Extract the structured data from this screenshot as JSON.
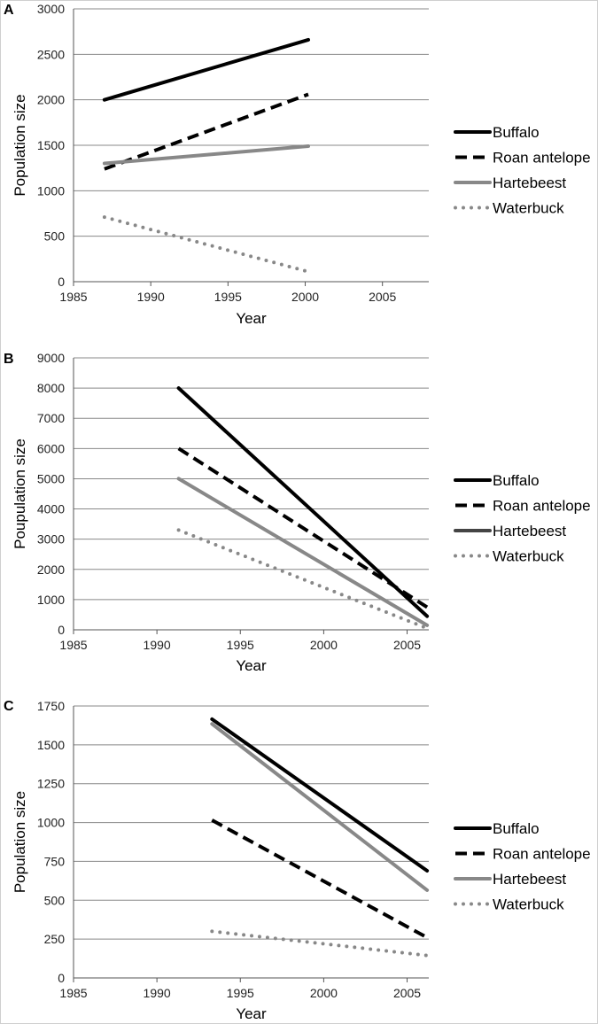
{
  "chart_data": [
    {
      "panel": "A",
      "type": "line",
      "xlabel": "Year",
      "ylabel": "Population size",
      "xlim": [
        1985,
        2008
      ],
      "ylim": [
        0,
        3000
      ],
      "xticks": [
        1985,
        1990,
        1995,
        2000,
        2005
      ],
      "yticks": [
        0,
        500,
        1000,
        1500,
        2000,
        2500,
        3000
      ],
      "grid": "horizontal",
      "legend": "right",
      "series": [
        {
          "name": "Buffalo",
          "color": "#000000",
          "style": "solid",
          "x": [
            1987,
            2000.2
          ],
          "y": [
            2000,
            2660
          ]
        },
        {
          "name": "Roan antelope",
          "color": "#000000",
          "style": "dashed",
          "x": [
            1987,
            2000.2
          ],
          "y": [
            1240,
            2060
          ]
        },
        {
          "name": "Hartebeest",
          "color": "#888888",
          "style": "solid",
          "x": [
            1987,
            2000.2
          ],
          "y": [
            1300,
            1490
          ]
        },
        {
          "name": "Waterbuck",
          "color": "#888888",
          "style": "dotted",
          "x": [
            1987,
            2000.2
          ],
          "y": [
            710,
            110
          ]
        }
      ]
    },
    {
      "panel": "B",
      "type": "line",
      "xlabel": "Year",
      "ylabel": "Poupulation size",
      "xlim": [
        1985,
        2006.3
      ],
      "ylim": [
        0,
        9000
      ],
      "xticks": [
        1985,
        1990,
        1995,
        2000,
        2005
      ],
      "yticks": [
        0,
        1000,
        2000,
        3000,
        4000,
        5000,
        6000,
        7000,
        8000,
        9000
      ],
      "grid": "horizontal",
      "legend": "right",
      "series": [
        {
          "name": "Buffalo",
          "color": "#000000",
          "style": "solid",
          "x": [
            1991.3,
            2006.2
          ],
          "y": [
            8000,
            450
          ]
        },
        {
          "name": "Roan antelope",
          "color": "#000000",
          "style": "dashed",
          "x": [
            1991.3,
            2006.2
          ],
          "y": [
            6000,
            750
          ]
        },
        {
          "name": "Hartebeest",
          "color": "#888888",
          "style": "solid",
          "legend_color": "#444444",
          "x": [
            1991.3,
            2006.2
          ],
          "y": [
            5000,
            150
          ]
        },
        {
          "name": "Waterbuck",
          "color": "#888888",
          "style": "dotted",
          "x": [
            1991.3,
            2006.2
          ],
          "y": [
            3300,
            50
          ]
        }
      ]
    },
    {
      "panel": "C",
      "type": "line",
      "xlabel": "Year",
      "ylabel": "Population size",
      "xlim": [
        1985,
        2006.3
      ],
      "ylim": [
        0,
        1750
      ],
      "xticks": [
        1985,
        1990,
        1995,
        2000,
        2005
      ],
      "yticks": [
        0,
        250,
        500,
        750,
        1000,
        1250,
        1500,
        1750
      ],
      "grid": "horizontal",
      "legend": "right",
      "series": [
        {
          "name": "Buffalo",
          "color": "#000000",
          "style": "solid",
          "x": [
            1993.3,
            2006.2
          ],
          "y": [
            1665,
            690
          ]
        },
        {
          "name": "Roan antelope",
          "color": "#000000",
          "style": "dashed",
          "x": [
            1993.3,
            2006.2
          ],
          "y": [
            1015,
            260
          ]
        },
        {
          "name": "Hartebeest",
          "color": "#888888",
          "style": "solid",
          "x": [
            1993.3,
            2006.2
          ],
          "y": [
            1635,
            565
          ]
        },
        {
          "name": "Waterbuck",
          "color": "#888888",
          "style": "dotted",
          "x": [
            1993.3,
            2006.2
          ],
          "y": [
            300,
            145
          ]
        }
      ]
    }
  ]
}
